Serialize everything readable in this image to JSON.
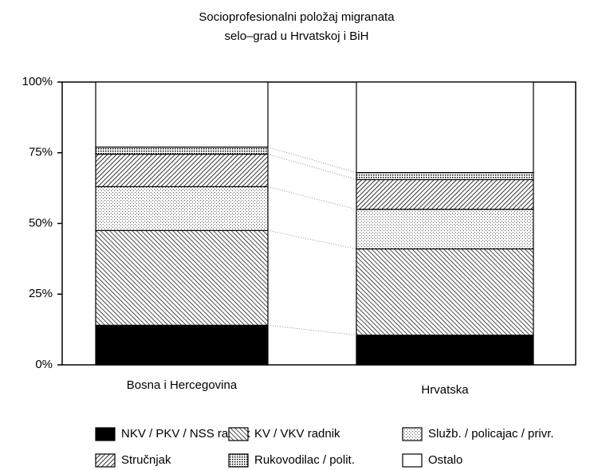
{
  "chart_data": {
    "type": "stacked_bar_100",
    "title": [
      "Socioprofesionalni položaj migranata",
      "selo–grad u Hrvatskoj i BiH"
    ],
    "categories": [
      "Bosna i Hercegovina",
      "Hrvatska"
    ],
    "series": [
      {
        "name": "NKV / PKV / NSS radnik",
        "color": "#000000",
        "pattern": "solid",
        "values": [
          14,
          10.5
        ]
      },
      {
        "name": "KV / VKV radnik",
        "color": "#000000",
        "pattern": "backslash",
        "values": [
          33.5,
          30.5
        ]
      },
      {
        "name": "Služb. / policajac / privr.",
        "color": "#000000",
        "pattern": "dots",
        "values": [
          15.5,
          14
        ]
      },
      {
        "name": "Stručnjak",
        "color": "#000000",
        "pattern": "slash",
        "values": [
          11.5,
          10.5
        ]
      },
      {
        "name": "Rukovodilac / polit.",
        "color": "#000000",
        "pattern": "dense-dots",
        "values": [
          2.5,
          2.5
        ]
      },
      {
        "name": "Ostalo",
        "color": "#ffffff",
        "pattern": "none",
        "values": [
          23,
          32
        ]
      }
    ],
    "ylim": [
      0,
      100
    ],
    "yticks": [
      {
        "value": 0,
        "label": "0%"
      },
      {
        "value": 25,
        "label": "25%"
      },
      {
        "value": 50,
        "label": "50%"
      },
      {
        "value": 75,
        "label": "75%"
      },
      {
        "value": 100,
        "label": "100%"
      }
    ],
    "connectors": true
  }
}
